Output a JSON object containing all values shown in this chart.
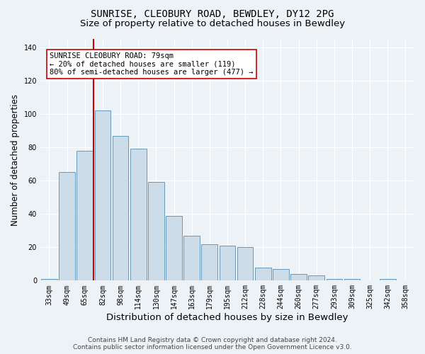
{
  "title": "SUNRISE, CLEOBURY ROAD, BEWDLEY, DY12 2PG",
  "subtitle": "Size of property relative to detached houses in Bewdley",
  "xlabel": "Distribution of detached houses by size in Bewdley",
  "ylabel": "Number of detached properties",
  "footer1": "Contains HM Land Registry data © Crown copyright and database right 2024.",
  "footer2": "Contains public sector information licensed under the Open Government Licence v3.0.",
  "categories": [
    "33sqm",
    "49sqm",
    "65sqm",
    "82sqm",
    "98sqm",
    "114sqm",
    "130sqm",
    "147sqm",
    "163sqm",
    "179sqm",
    "195sqm",
    "212sqm",
    "228sqm",
    "244sqm",
    "260sqm",
    "277sqm",
    "293sqm",
    "309sqm",
    "325sqm",
    "342sqm",
    "358sqm"
  ],
  "values": [
    1,
    65,
    78,
    102,
    87,
    79,
    59,
    39,
    27,
    22,
    21,
    20,
    8,
    7,
    4,
    3,
    1,
    1,
    0,
    1,
    0
  ],
  "bar_color": "#ccdce8",
  "bar_edge_color": "#6699bb",
  "vline_color": "#cc0000",
  "vline_x_index": 3,
  "annotation_line1": "SUNRISE CLEOBURY ROAD: 79sqm",
  "annotation_line2": "← 20% of detached houses are smaller (119)",
  "annotation_line3": "80% of semi-detached houses are larger (477) →",
  "annotation_box_facecolor": "#ffffff",
  "annotation_box_edgecolor": "#cc0000",
  "ylim": [
    0,
    145
  ],
  "yticks": [
    0,
    20,
    40,
    60,
    80,
    100,
    120,
    140
  ],
  "bg_color": "#edf2f7",
  "plot_bg_color": "#edf2f7",
  "grid_color": "#ffffff",
  "title_fontsize": 10,
  "subtitle_fontsize": 9.5,
  "xlabel_fontsize": 9.5,
  "ylabel_fontsize": 8.5,
  "tick_fontsize": 7,
  "annotation_fontsize": 7.5,
  "footer_fontsize": 6.5
}
